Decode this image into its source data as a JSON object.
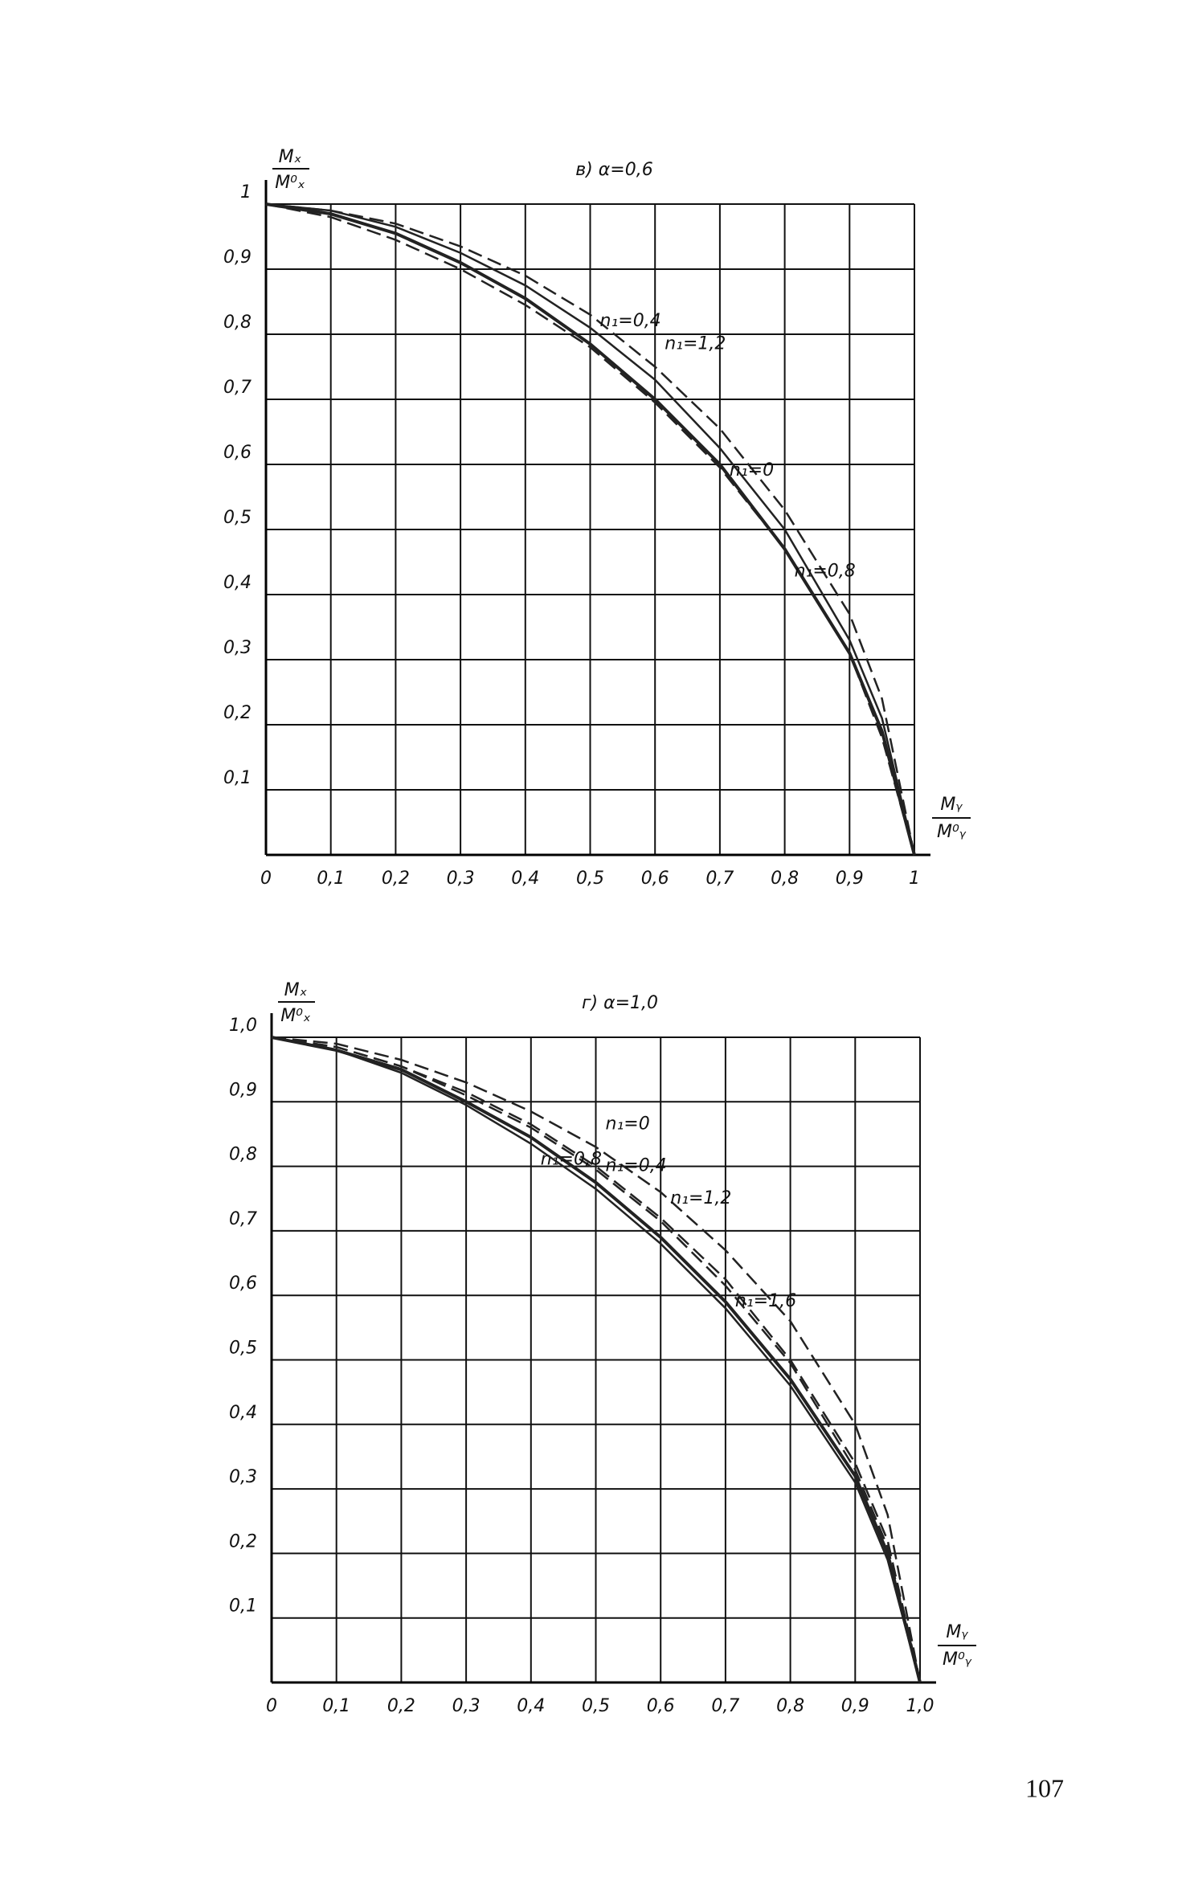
{
  "chart_data": [
    {
      "type": "line",
      "title": "в) α=0,6",
      "ylabel": [
        "Mₓ",
        "M⁰ₓ"
      ],
      "xlabel": [
        "Mᵧ",
        "M⁰ᵧ"
      ],
      "x": [
        0,
        0.1,
        0.2,
        0.3,
        0.4,
        0.5,
        0.6,
        0.7,
        0.8,
        0.9,
        0.95,
        1
      ],
      "series": [
        {
          "name": "n₁=1,2",
          "color": "#222",
          "style": "dashed",
          "values": [
            1,
            0.99,
            0.97,
            0.935,
            0.89,
            0.83,
            0.75,
            0.655,
            0.53,
            0.37,
            0.24,
            0
          ]
        },
        {
          "name": "n₁=0",
          "color": "#222",
          "style": "solid",
          "values": [
            1,
            0.99,
            0.965,
            0.925,
            0.875,
            0.81,
            0.73,
            0.625,
            0.5,
            0.33,
            0.21,
            0
          ]
        },
        {
          "name": "n₁=0,4",
          "color": "#222",
          "style": "thick",
          "values": [
            1,
            0.985,
            0.955,
            0.91,
            0.855,
            0.785,
            0.7,
            0.6,
            0.47,
            0.31,
            0.19,
            0
          ]
        },
        {
          "name": "n₁=0,8",
          "color": "#222",
          "style": "dashed",
          "values": [
            1,
            0.98,
            0.945,
            0.9,
            0.845,
            0.78,
            0.695,
            0.595,
            0.47,
            0.31,
            0.18,
            0
          ]
        }
      ],
      "xlim": [
        0,
        1
      ],
      "ylim": [
        0,
        1
      ],
      "xticks": [
        0,
        {
          "value": 0.1,
          "label": "0,1"
        },
        {
          "value": 0.2,
          "label": "0,2"
        },
        {
          "value": 0.3,
          "label": "0,3"
        },
        {
          "value": 0.4,
          "label": "0,4"
        },
        {
          "value": 0.5,
          "label": "0,5"
        },
        {
          "value": 0.6,
          "label": "0,6"
        },
        {
          "value": 0.7,
          "label": "0,7"
        },
        {
          "value": 0.8,
          "label": "0,8"
        },
        {
          "value": 0.9,
          "label": "0,9"
        },
        1
      ],
      "yticks": [
        {
          "value": 0.1,
          "label": "0,1"
        },
        {
          "value": 0.2,
          "label": "0,2"
        },
        {
          "value": 0.3,
          "label": "0,3"
        },
        {
          "value": 0.4,
          "label": "0,4"
        },
        {
          "value": 0.5,
          "label": "0,5"
        },
        {
          "value": 0.6,
          "label": "0,6"
        },
        {
          "value": 0.7,
          "label": "0,7"
        },
        {
          "value": 0.8,
          "label": "0,8"
        },
        {
          "value": 0.9,
          "label": "0,9"
        },
        1
      ],
      "grid": true
    },
    {
      "type": "line",
      "title": "г) α=1,0",
      "ylabel": [
        "Mₓ",
        "M⁰ₓ"
      ],
      "xlabel": [
        "Mᵧ",
        "M⁰ᵧ"
      ],
      "x": [
        0,
        0.1,
        0.2,
        0.3,
        0.4,
        0.5,
        0.6,
        0.7,
        0.8,
        0.9,
        0.95,
        1
      ],
      "series": [
        {
          "name": "n₁=0",
          "color": "#222",
          "style": "dashed",
          "values": [
            1,
            0.99,
            0.965,
            0.93,
            0.885,
            0.83,
            0.76,
            0.67,
            0.56,
            0.4,
            0.26,
            0
          ]
        },
        {
          "name": "n₁=1,6",
          "color": "#222",
          "style": "dashed",
          "values": [
            1,
            0.985,
            0.955,
            0.915,
            0.865,
            0.8,
            0.72,
            0.625,
            0.5,
            0.34,
            0.22,
            0
          ]
        },
        {
          "name": "n₁=1,2",
          "color": "#222",
          "style": "dashed",
          "values": [
            1,
            0.985,
            0.955,
            0.91,
            0.86,
            0.795,
            0.715,
            0.615,
            0.495,
            0.33,
            0.21,
            0
          ]
        },
        {
          "name": "n₁=0,8",
          "color": "#222",
          "style": "thick",
          "values": [
            1,
            0.98,
            0.95,
            0.9,
            0.845,
            0.775,
            0.69,
            0.59,
            0.47,
            0.32,
            0.2,
            0
          ]
        },
        {
          "name": "n₁=0,4",
          "color": "#222",
          "style": "solid",
          "values": [
            1,
            0.98,
            0.945,
            0.895,
            0.835,
            0.765,
            0.68,
            0.58,
            0.46,
            0.31,
            0.19,
            0
          ]
        }
      ],
      "xlim": [
        0,
        1
      ],
      "ylim": [
        0,
        1
      ],
      "xticks": [
        0,
        {
          "value": 0.1,
          "label": "0,1"
        },
        {
          "value": 0.2,
          "label": "0,2"
        },
        {
          "value": 0.3,
          "label": "0,3"
        },
        {
          "value": 0.4,
          "label": "0,4"
        },
        {
          "value": 0.5,
          "label": "0,5"
        },
        {
          "value": 0.6,
          "label": "0,6"
        },
        {
          "value": 0.7,
          "label": "0,7"
        },
        {
          "value": 0.8,
          "label": "0,8"
        },
        {
          "value": 0.9,
          "label": "0,9"
        },
        {
          "value": 1,
          "label": "1,0"
        }
      ],
      "yticks": [
        {
          "value": 0.1,
          "label": "0,1"
        },
        {
          "value": 0.2,
          "label": "0,2"
        },
        {
          "value": 0.3,
          "label": "0,3"
        },
        {
          "value": 0.4,
          "label": "0,4"
        },
        {
          "value": 0.5,
          "label": "0,5"
        },
        {
          "value": 0.6,
          "label": "0,6"
        },
        {
          "value": 0.7,
          "label": "0,7"
        },
        {
          "value": 0.8,
          "label": "0,8"
        },
        {
          "value": 0.9,
          "label": "0,9"
        },
        {
          "value": 1,
          "label": "1,0"
        }
      ],
      "grid": true
    }
  ],
  "page_number": "107"
}
